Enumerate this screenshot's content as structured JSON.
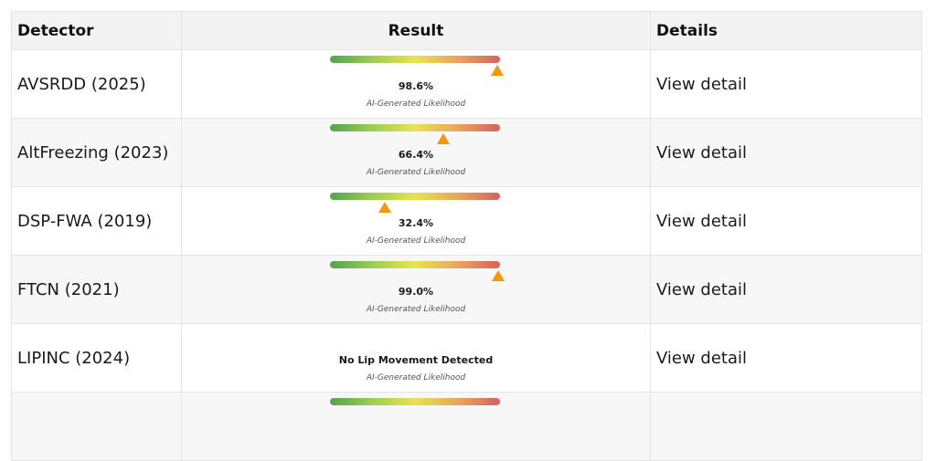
{
  "table": {
    "headers": {
      "detector": "Detector",
      "result": "Result",
      "details": "Details"
    },
    "rows": [
      {
        "detector": "AVSRDD (2025)",
        "has_meter": true,
        "likelihood": 0.986,
        "result_text": "98.6%",
        "caption": "AI-Generated Likelihood",
        "details_link": "View detail"
      },
      {
        "detector": "AltFreezing (2023)",
        "has_meter": true,
        "likelihood": 0.664,
        "result_text": "66.4%",
        "caption": "AI-Generated Likelihood",
        "details_link": "View detail"
      },
      {
        "detector": "DSP-FWA (2019)",
        "has_meter": true,
        "likelihood": 0.324,
        "result_text": "32.4%",
        "caption": "AI-Generated Likelihood",
        "details_link": "View detail"
      },
      {
        "detector": "FTCN (2021)",
        "has_meter": true,
        "likelihood": 0.99,
        "result_text": "99.0%",
        "caption": "AI-Generated Likelihood",
        "details_link": "View detail"
      },
      {
        "detector": "LIPINC (2024)",
        "has_meter": false,
        "likelihood": null,
        "result_text": "No Lip Movement Detected",
        "caption": "AI-Generated Likelihood",
        "details_link": "View detail"
      }
    ]
  },
  "colors": {
    "meter_low": "#52a352",
    "meter_mid": "#e8e44e",
    "meter_high": "#d86060",
    "marker": "#f4960e",
    "header_bg": "#f3f3f3"
  },
  "icons": {
    "marker": "triangle-up-icon"
  }
}
